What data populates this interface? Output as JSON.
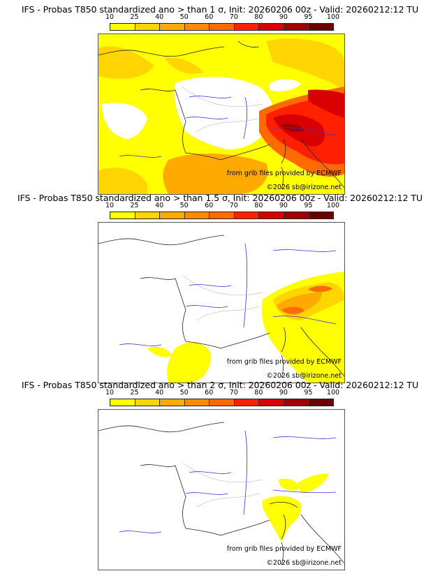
{
  "colorbar": {
    "levels": [
      "10",
      "25",
      "40",
      "50",
      "60",
      "70",
      "80",
      "90",
      "95",
      "100"
    ],
    "colors": [
      "#ffff00",
      "#ffd500",
      "#ffaa00",
      "#ff8c00",
      "#ff6a00",
      "#ff2000",
      "#d80000",
      "#a00000",
      "#6a0000"
    ]
  },
  "credits": {
    "source": "from grib files provided by ECMWF",
    "copyright": "©2026 sb@irizone.net"
  },
  "panels": [
    {
      "title": "IFS - Probas T850  standardized ano > than 1 σ, Init: 20260206 00z - Valid: 20260212:12 TU",
      "threshold_sigma": "1"
    },
    {
      "title": "IFS - Probas T850  standardized ano > than 1.5 σ, Init: 20260206 00z - Valid: 20260212:12 TU",
      "threshold_sigma": "1.5"
    },
    {
      "title": "IFS - Probas T850  standardized ano > than 2 σ, Init: 20260206 00z - Valid: 20260212:12 TU",
      "threshold_sigma": "2"
    }
  ]
}
